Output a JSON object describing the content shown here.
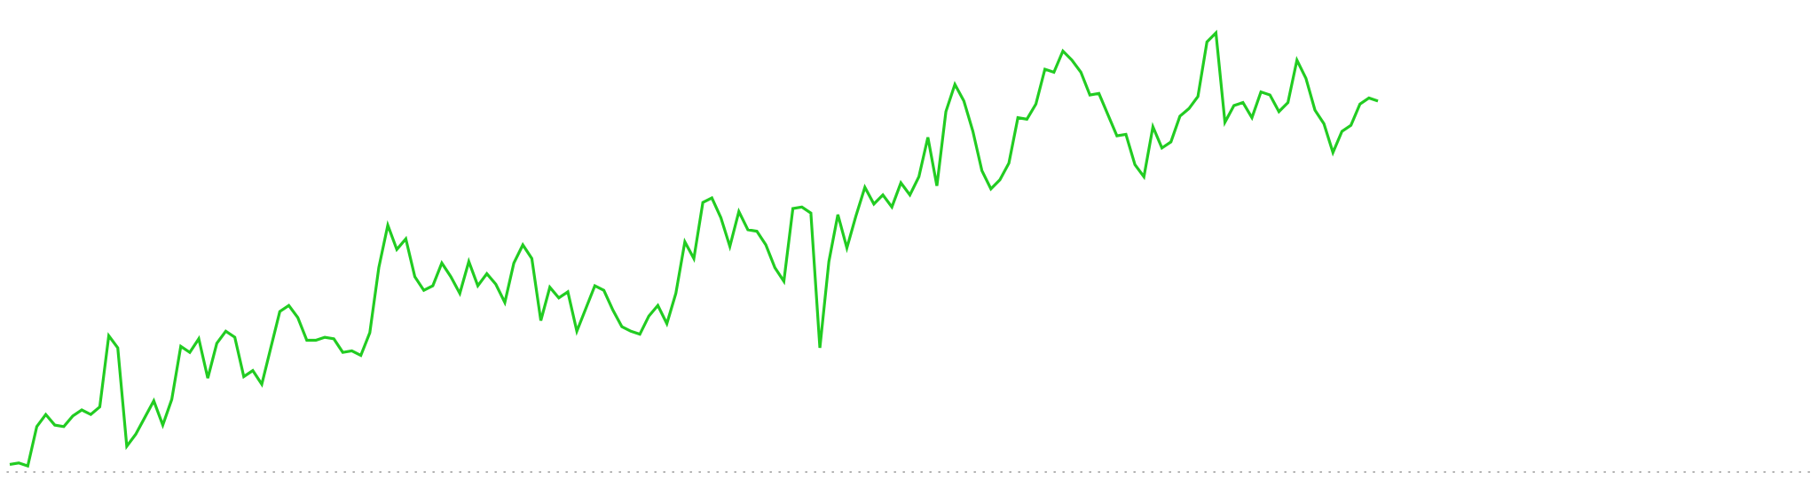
{
  "colors": {
    "background": "#ffffff",
    "line": "#22cc22",
    "baseline": "#999999"
  },
  "chart_data": {
    "type": "line",
    "title": "",
    "xlabel": "",
    "ylabel": "",
    "grid": false,
    "legend": "none",
    "axes_visible": false,
    "baseline_style": "dotted",
    "x_range": [
      0,
      200
    ],
    "ylim": [
      0,
      300
    ],
    "series": [
      {
        "values": [
          5,
          6,
          4,
          30,
          38,
          31,
          30,
          37,
          41,
          38,
          43,
          90,
          82,
          17,
          25,
          36,
          47,
          31,
          48,
          83,
          79,
          88,
          62,
          85,
          93,
          89,
          63,
          67,
          58,
          82,
          106,
          110,
          102,
          87,
          87,
          89,
          88,
          79,
          80,
          77,
          92,
          135,
          163,
          147,
          154,
          129,
          120,
          123,
          138,
          129,
          118,
          139,
          123,
          131,
          124,
          112,
          138,
          150,
          141,
          100,
          122,
          115,
          119,
          93,
          108,
          123,
          120,
          107,
          96,
          93,
          91,
          103,
          110,
          98,
          118,
          152,
          141,
          178,
          181,
          168,
          149,
          172,
          160,
          159,
          150,
          135,
          126,
          174,
          175,
          171,
          82,
          139,
          170,
          148,
          169,
          188,
          177,
          183,
          175,
          191,
          183,
          195,
          221,
          189,
          238,
          256,
          245,
          225,
          199,
          187,
          193,
          204,
          234,
          233,
          243,
          266,
          264,
          278,
          272,
          264,
          249,
          250,
          236,
          222,
          223,
          203,
          195,
          228,
          214,
          218,
          235,
          240,
          248,
          284,
          290,
          231,
          242,
          244,
          234,
          251,
          249,
          238,
          244,
          272,
          260,
          239,
          230,
          211,
          225,
          229,
          243,
          247,
          245
        ]
      }
    ]
  }
}
